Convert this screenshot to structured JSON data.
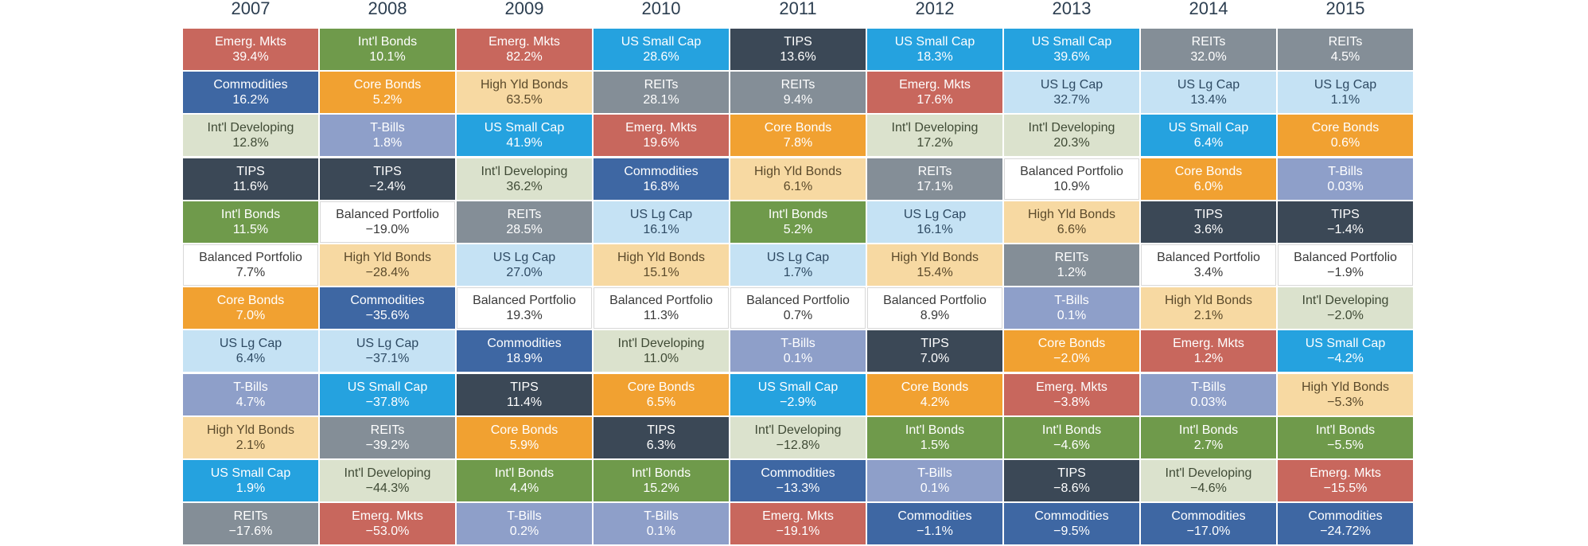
{
  "chart_data": {
    "type": "table",
    "colors": {
      "Emerg. Mkts": "#c8675d",
      "Int'l Bonds": "#6f9a4b",
      "US Small Cap": "#25a2df",
      "TIPS": "#3b4856",
      "REITs": "#848e97",
      "Commodities": "#3e67a3",
      "Core Bonds": "#f1a131",
      "High Yld Bonds": "#f7d9a2",
      "T-Bills": "#8e9fc9",
      "Int'l Developing": "#dbe2cd",
      "US Lg Cap": "#c5e2f4",
      "Balanced Portfolio": "#ffffff"
    },
    "years": [
      {
        "year": "2007",
        "cells": [
          {
            "name": "Emerg. Mkts",
            "value": "39.4%"
          },
          {
            "name": "Commodities",
            "value": "16.2%"
          },
          {
            "name": "Int'l Developing",
            "value": "12.8%"
          },
          {
            "name": "TIPS",
            "value": "11.6%"
          },
          {
            "name": "Int'l Bonds",
            "value": "11.5%"
          },
          {
            "name": "Balanced Portfolio",
            "value": "7.7%"
          },
          {
            "name": "Core Bonds",
            "value": "7.0%"
          },
          {
            "name": "US Lg Cap",
            "value": "6.4%"
          },
          {
            "name": "T-Bills",
            "value": "4.7%"
          },
          {
            "name": "High Yld Bonds",
            "value": "2.1%"
          },
          {
            "name": "US Small Cap",
            "value": "1.9%"
          },
          {
            "name": "REITs",
            "value": "-17.6%"
          }
        ]
      },
      {
        "year": "2008",
        "cells": [
          {
            "name": "Int'l Bonds",
            "value": "10.1%"
          },
          {
            "name": "Core Bonds",
            "value": "5.2%"
          },
          {
            "name": "T-Bills",
            "value": "1.8%"
          },
          {
            "name": "TIPS",
            "value": "-2.4%"
          },
          {
            "name": "Balanced Portfolio",
            "value": "-19.0%"
          },
          {
            "name": "High Yld Bonds",
            "value": "-28.4%"
          },
          {
            "name": "Commodities",
            "value": "-35.6%"
          },
          {
            "name": "US Lg Cap",
            "value": "-37.1%"
          },
          {
            "name": "US Small Cap",
            "value": "-37.8%"
          },
          {
            "name": "REITs",
            "value": "-39.2%"
          },
          {
            "name": "Int'l Developing",
            "value": "-44.3%"
          },
          {
            "name": "Emerg. Mkts",
            "value": "-53.0%"
          }
        ]
      },
      {
        "year": "2009",
        "cells": [
          {
            "name": "Emerg. Mkts",
            "value": "82.2%"
          },
          {
            "name": "High Yld Bonds",
            "value": "63.5%"
          },
          {
            "name": "US Small Cap",
            "value": "41.9%"
          },
          {
            "name": "Int'l Developing",
            "value": "36.2%"
          },
          {
            "name": "REITs",
            "value": "28.5%"
          },
          {
            "name": "US Lg Cap",
            "value": "27.0%"
          },
          {
            "name": "Balanced Portfolio",
            "value": "19.3%"
          },
          {
            "name": "Commodities",
            "value": "18.9%"
          },
          {
            "name": "TIPS",
            "value": "11.4%"
          },
          {
            "name": "Core Bonds",
            "value": "5.9%"
          },
          {
            "name": "Int'l Bonds",
            "value": "4.4%"
          },
          {
            "name": "T-Bills",
            "value": "0.2%"
          }
        ]
      },
      {
        "year": "2010",
        "cells": [
          {
            "name": "US Small Cap",
            "value": "28.6%"
          },
          {
            "name": "REITs",
            "value": "28.1%"
          },
          {
            "name": "Emerg. Mkts",
            "value": "19.6%"
          },
          {
            "name": "Commodities",
            "value": "16.8%"
          },
          {
            "name": "US Lg Cap",
            "value": "16.1%"
          },
          {
            "name": "High Yld Bonds",
            "value": "15.1%"
          },
          {
            "name": "Balanced Portfolio",
            "value": "11.3%"
          },
          {
            "name": "Int'l Developing",
            "value": "11.0%"
          },
          {
            "name": "Core Bonds",
            "value": "6.5%"
          },
          {
            "name": "TIPS",
            "value": "6.3%"
          },
          {
            "name": "Int'l Bonds",
            "value": "15.2%"
          },
          {
            "name": "T-Bills",
            "value": "0.1%"
          }
        ]
      },
      {
        "year": "2011",
        "cells": [
          {
            "name": "TIPS",
            "value": "13.6%"
          },
          {
            "name": "REITs",
            "value": "9.4%"
          },
          {
            "name": "Core Bonds",
            "value": "7.8%"
          },
          {
            "name": "High Yld Bonds",
            "value": "6.1%"
          },
          {
            "name": "Int'l Bonds",
            "value": "5.2%"
          },
          {
            "name": "US Lg Cap",
            "value": "1.7%"
          },
          {
            "name": "Balanced Portfolio",
            "value": "0.7%"
          },
          {
            "name": "T-Bills",
            "value": "0.1%"
          },
          {
            "name": "US Small Cap",
            "value": "-2.9%"
          },
          {
            "name": "Int'l Developing",
            "value": "-12.8%"
          },
          {
            "name": "Commodities",
            "value": "-13.3%"
          },
          {
            "name": "Emerg. Mkts",
            "value": "-19.1%"
          }
        ]
      },
      {
        "year": "2012",
        "cells": [
          {
            "name": "US Small Cap",
            "value": "18.3%"
          },
          {
            "name": "Emerg. Mkts",
            "value": "17.6%"
          },
          {
            "name": "Int'l Developing",
            "value": "17.2%"
          },
          {
            "name": "REITs",
            "value": "17.1%"
          },
          {
            "name": "US Lg Cap",
            "value": "16.1%"
          },
          {
            "name": "High Yld Bonds",
            "value": "15.4%"
          },
          {
            "name": "Balanced Portfolio",
            "value": "8.9%"
          },
          {
            "name": "TIPS",
            "value": "7.0%"
          },
          {
            "name": "Core Bonds",
            "value": "4.2%"
          },
          {
            "name": "Int'l Bonds",
            "value": "1.5%"
          },
          {
            "name": "T-Bills",
            "value": "0.1%"
          },
          {
            "name": "Commodities",
            "value": "-1.1%"
          }
        ]
      },
      {
        "year": "2013",
        "cells": [
          {
            "name": "US Small Cap",
            "value": "39.6%"
          },
          {
            "name": "US Lg Cap",
            "value": "32.7%"
          },
          {
            "name": "Int'l Developing",
            "value": "20.3%"
          },
          {
            "name": "Balanced Portfolio",
            "value": "10.9%"
          },
          {
            "name": "High Yld Bonds",
            "value": "6.6%"
          },
          {
            "name": "REITs",
            "value": "1.2%"
          },
          {
            "name": "T-Bills",
            "value": "0.1%"
          },
          {
            "name": "Core Bonds",
            "value": "-2.0%"
          },
          {
            "name": "Emerg. Mkts",
            "value": "-3.8%"
          },
          {
            "name": "Int'l Bonds",
            "value": "-4.6%"
          },
          {
            "name": "TIPS",
            "value": "-8.6%"
          },
          {
            "name": "Commodities",
            "value": "-9.5%"
          }
        ]
      },
      {
        "year": "2014",
        "cells": [
          {
            "name": "REITs",
            "value": "32.0%"
          },
          {
            "name": "US Lg Cap",
            "value": "13.4%"
          },
          {
            "name": "US Small Cap",
            "value": "6.4%"
          },
          {
            "name": "Core Bonds",
            "value": "6.0%"
          },
          {
            "name": "TIPS",
            "value": "3.6%"
          },
          {
            "name": "Balanced Portfolio",
            "value": "3.4%"
          },
          {
            "name": "High Yld Bonds",
            "value": "2.1%"
          },
          {
            "name": "Emerg. Mkts",
            "value": "1.2%"
          },
          {
            "name": "T-Bills",
            "value": "0.03%"
          },
          {
            "name": "Int'l Bonds",
            "value": "2.7%"
          },
          {
            "name": "Int'l Developing",
            "value": "-4.6%"
          },
          {
            "name": "Commodities",
            "value": "-17.0%"
          }
        ]
      },
      {
        "year": "2015",
        "cells": [
          {
            "name": "REITs",
            "value": "4.5%"
          },
          {
            "name": "US Lg Cap",
            "value": "1.1%"
          },
          {
            "name": "Core Bonds",
            "value": "0.6%"
          },
          {
            "name": "T-Bills",
            "value": "0.03%"
          },
          {
            "name": "TIPS",
            "value": "-1.4%"
          },
          {
            "name": "Balanced Portfolio",
            "value": "-1.9%"
          },
          {
            "name": "Int'l Developing",
            "value": "-2.0%"
          },
          {
            "name": "US Small Cap",
            "value": "-4.2%"
          },
          {
            "name": "High Yld Bonds",
            "value": "-5.3%"
          },
          {
            "name": "Int'l Bonds",
            "value": "-5.5%"
          },
          {
            "name": "Emerg. Mkts",
            "value": "-15.5%"
          },
          {
            "name": "Commodities",
            "value": "-24.72%"
          }
        ]
      }
    ]
  }
}
